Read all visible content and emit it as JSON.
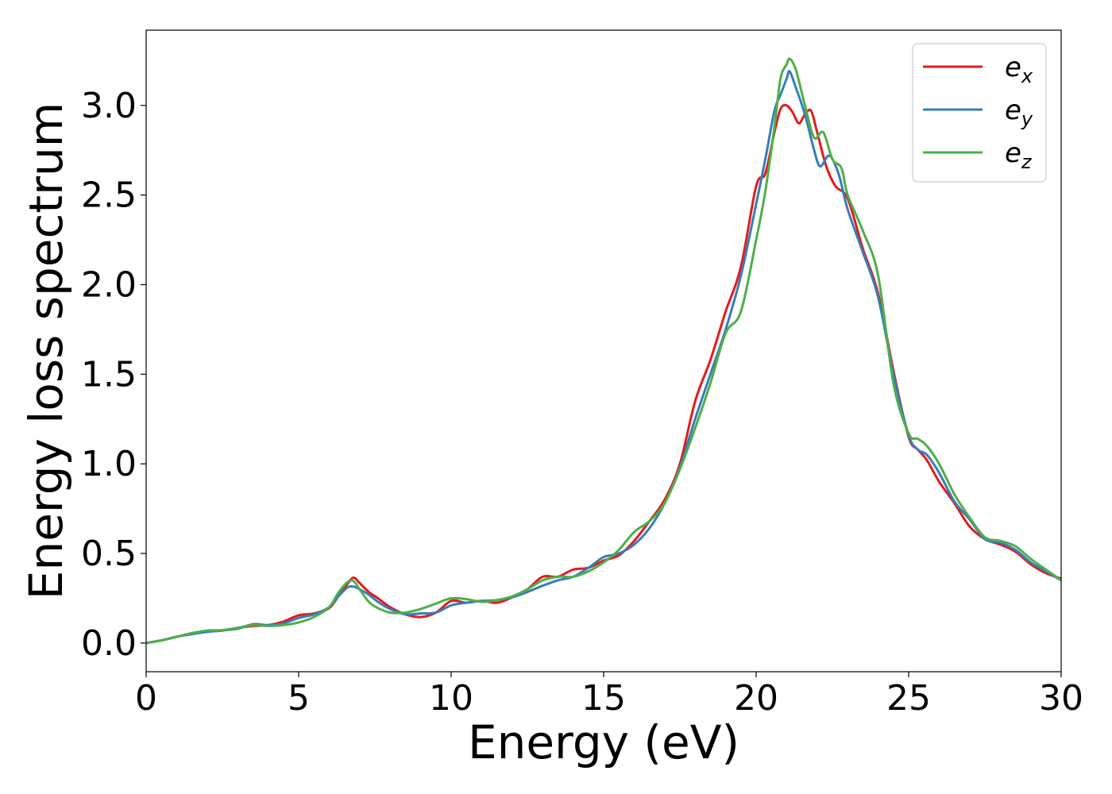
{
  "chart_data": {
    "type": "line",
    "title": "",
    "xlabel": "Energy (eV)",
    "ylabel": "Energy loss spectrum",
    "xlim": [
      0,
      30
    ],
    "ylim": [
      -0.16,
      3.42
    ],
    "xticks": [
      0,
      5,
      10,
      15,
      20,
      25,
      30
    ],
    "xtick_labels": [
      "0",
      "5",
      "10",
      "15",
      "20",
      "25",
      "30"
    ],
    "yticks": [
      0.0,
      0.5,
      1.0,
      1.5,
      2.0,
      2.5,
      3.0
    ],
    "ytick_labels": [
      "0.0",
      "0.5",
      "1.0",
      "1.5",
      "2.0",
      "2.5",
      "3.0"
    ],
    "grid": false,
    "legend_position": "top-right",
    "series": [
      {
        "name": "e_x",
        "legend_base": "e",
        "legend_sub": "x",
        "color": "#e41a1c",
        "points": [
          [
            0,
            0.0
          ],
          [
            0.5,
            0.015
          ],
          [
            1,
            0.035
          ],
          [
            1.5,
            0.055
          ],
          [
            2,
            0.065
          ],
          [
            2.5,
            0.07
          ],
          [
            3,
            0.085
          ],
          [
            3.5,
            0.095
          ],
          [
            4,
            0.1
          ],
          [
            4.5,
            0.12
          ],
          [
            5,
            0.155
          ],
          [
            5.5,
            0.165
          ],
          [
            6,
            0.195
          ],
          [
            6.3,
            0.26
          ],
          [
            6.6,
            0.33
          ],
          [
            6.8,
            0.365
          ],
          [
            7,
            0.335
          ],
          [
            7.3,
            0.285
          ],
          [
            7.6,
            0.25
          ],
          [
            8,
            0.2
          ],
          [
            8.5,
            0.16
          ],
          [
            9,
            0.145
          ],
          [
            9.5,
            0.17
          ],
          [
            10,
            0.235
          ],
          [
            10.5,
            0.225
          ],
          [
            11,
            0.235
          ],
          [
            11.5,
            0.225
          ],
          [
            12,
            0.255
          ],
          [
            12.5,
            0.3
          ],
          [
            13,
            0.37
          ],
          [
            13.5,
            0.37
          ],
          [
            14,
            0.41
          ],
          [
            14.5,
            0.42
          ],
          [
            15,
            0.46
          ],
          [
            15.5,
            0.49
          ],
          [
            16,
            0.57
          ],
          [
            16.5,
            0.68
          ],
          [
            17,
            0.8
          ],
          [
            17.5,
            1.0
          ],
          [
            18,
            1.35
          ],
          [
            18.5,
            1.58
          ],
          [
            19,
            1.85
          ],
          [
            19.5,
            2.1
          ],
          [
            20,
            2.55
          ],
          [
            20.3,
            2.62
          ],
          [
            20.6,
            2.85
          ],
          [
            20.8,
            2.98
          ],
          [
            21,
            3.0
          ],
          [
            21.2,
            2.96
          ],
          [
            21.4,
            2.9
          ],
          [
            21.6,
            2.95
          ],
          [
            21.8,
            2.97
          ],
          [
            22,
            2.85
          ],
          [
            22.3,
            2.66
          ],
          [
            22.6,
            2.55
          ],
          [
            23,
            2.48
          ],
          [
            23.5,
            2.2
          ],
          [
            24,
            1.95
          ],
          [
            24.5,
            1.52
          ],
          [
            25,
            1.15
          ],
          [
            25.3,
            1.08
          ],
          [
            25.6,
            1.02
          ],
          [
            26,
            0.9
          ],
          [
            26.5,
            0.78
          ],
          [
            27,
            0.65
          ],
          [
            27.5,
            0.58
          ],
          [
            28,
            0.55
          ],
          [
            28.5,
            0.51
          ],
          [
            29,
            0.44
          ],
          [
            29.5,
            0.39
          ],
          [
            30,
            0.36
          ]
        ]
      },
      {
        "name": "e_y",
        "legend_base": "e",
        "legend_sub": "y",
        "color": "#377eb8",
        "points": [
          [
            0,
            0.0
          ],
          [
            0.5,
            0.015
          ],
          [
            1,
            0.035
          ],
          [
            1.5,
            0.05
          ],
          [
            2,
            0.062
          ],
          [
            2.5,
            0.07
          ],
          [
            3,
            0.08
          ],
          [
            3.5,
            0.105
          ],
          [
            4,
            0.1
          ],
          [
            4.5,
            0.11
          ],
          [
            5,
            0.14
          ],
          [
            5.5,
            0.16
          ],
          [
            6,
            0.2
          ],
          [
            6.3,
            0.26
          ],
          [
            6.6,
            0.31
          ],
          [
            6.8,
            0.315
          ],
          [
            7,
            0.3
          ],
          [
            7.3,
            0.27
          ],
          [
            7.6,
            0.23
          ],
          [
            8,
            0.19
          ],
          [
            8.5,
            0.16
          ],
          [
            9,
            0.165
          ],
          [
            9.5,
            0.17
          ],
          [
            10,
            0.21
          ],
          [
            10.5,
            0.225
          ],
          [
            11,
            0.235
          ],
          [
            11.5,
            0.24
          ],
          [
            12,
            0.255
          ],
          [
            12.5,
            0.285
          ],
          [
            13,
            0.32
          ],
          [
            13.5,
            0.35
          ],
          [
            14,
            0.37
          ],
          [
            14.5,
            0.42
          ],
          [
            15,
            0.48
          ],
          [
            15.5,
            0.5
          ],
          [
            16,
            0.55
          ],
          [
            16.5,
            0.64
          ],
          [
            17,
            0.78
          ],
          [
            17.5,
            0.98
          ],
          [
            18,
            1.25
          ],
          [
            18.5,
            1.5
          ],
          [
            19,
            1.75
          ],
          [
            19.5,
            2.05
          ],
          [
            20,
            2.45
          ],
          [
            20.3,
            2.7
          ],
          [
            20.6,
            2.97
          ],
          [
            20.8,
            3.06
          ],
          [
            21,
            3.15
          ],
          [
            21.1,
            3.19
          ],
          [
            21.3,
            3.1
          ],
          [
            21.6,
            2.95
          ],
          [
            21.9,
            2.75
          ],
          [
            22.1,
            2.66
          ],
          [
            22.4,
            2.72
          ],
          [
            22.7,
            2.62
          ],
          [
            23,
            2.42
          ],
          [
            23.5,
            2.18
          ],
          [
            24,
            1.93
          ],
          [
            24.5,
            1.5
          ],
          [
            25,
            1.16
          ],
          [
            25.3,
            1.08
          ],
          [
            25.6,
            1.05
          ],
          [
            26,
            0.95
          ],
          [
            26.5,
            0.79
          ],
          [
            27,
            0.69
          ],
          [
            27.5,
            0.58
          ],
          [
            28,
            0.56
          ],
          [
            28.5,
            0.52
          ],
          [
            29,
            0.45
          ],
          [
            29.5,
            0.4
          ],
          [
            30,
            0.35
          ]
        ]
      },
      {
        "name": "e_z",
        "legend_base": "e",
        "legend_sub": "z",
        "color": "#4daf4a",
        "points": [
          [
            0,
            0.0
          ],
          [
            0.5,
            0.015
          ],
          [
            1,
            0.035
          ],
          [
            1.5,
            0.055
          ],
          [
            2,
            0.07
          ],
          [
            2.5,
            0.072
          ],
          [
            3,
            0.085
          ],
          [
            3.5,
            0.1
          ],
          [
            4,
            0.095
          ],
          [
            4.5,
            0.1
          ],
          [
            5,
            0.115
          ],
          [
            5.5,
            0.145
          ],
          [
            6,
            0.2
          ],
          [
            6.3,
            0.28
          ],
          [
            6.6,
            0.34
          ],
          [
            6.8,
            0.345
          ],
          [
            7,
            0.3
          ],
          [
            7.3,
            0.23
          ],
          [
            7.6,
            0.195
          ],
          [
            8,
            0.17
          ],
          [
            8.5,
            0.17
          ],
          [
            9,
            0.19
          ],
          [
            9.5,
            0.22
          ],
          [
            10,
            0.25
          ],
          [
            10.5,
            0.245
          ],
          [
            11,
            0.23
          ],
          [
            11.5,
            0.24
          ],
          [
            12,
            0.26
          ],
          [
            12.5,
            0.3
          ],
          [
            13,
            0.35
          ],
          [
            13.5,
            0.37
          ],
          [
            14,
            0.37
          ],
          [
            14.5,
            0.4
          ],
          [
            15,
            0.45
          ],
          [
            15.5,
            0.52
          ],
          [
            16,
            0.62
          ],
          [
            16.5,
            0.68
          ],
          [
            17,
            0.78
          ],
          [
            17.5,
            0.97
          ],
          [
            18,
            1.2
          ],
          [
            18.5,
            1.45
          ],
          [
            19,
            1.73
          ],
          [
            19.5,
            1.85
          ],
          [
            20,
            2.25
          ],
          [
            20.3,
            2.52
          ],
          [
            20.6,
            2.88
          ],
          [
            20.8,
            3.15
          ],
          [
            21,
            3.23
          ],
          [
            21.1,
            3.26
          ],
          [
            21.3,
            3.2
          ],
          [
            21.6,
            3.0
          ],
          [
            21.9,
            2.82
          ],
          [
            22.2,
            2.85
          ],
          [
            22.5,
            2.7
          ],
          [
            22.8,
            2.65
          ],
          [
            23,
            2.5
          ],
          [
            23.5,
            2.3
          ],
          [
            24,
            2.05
          ],
          [
            24.5,
            1.45
          ],
          [
            25,
            1.17
          ],
          [
            25.3,
            1.14
          ],
          [
            25.6,
            1.1
          ],
          [
            26,
            1.0
          ],
          [
            26.5,
            0.83
          ],
          [
            27,
            0.7
          ],
          [
            27.5,
            0.59
          ],
          [
            28,
            0.57
          ],
          [
            28.5,
            0.54
          ],
          [
            29,
            0.47
          ],
          [
            29.5,
            0.41
          ],
          [
            30,
            0.35
          ]
        ]
      }
    ]
  }
}
